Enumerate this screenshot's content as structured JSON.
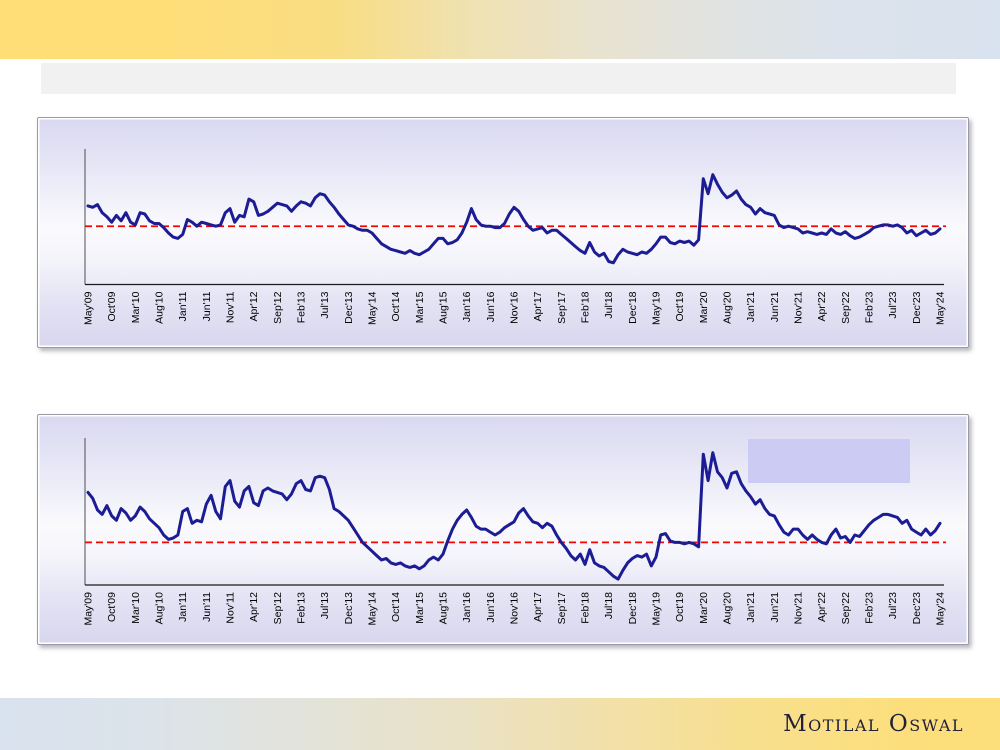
{
  "header": {
    "title": ""
  },
  "brand": {
    "logo_text": "Motilal Oswal",
    "logo_color": "#20203a"
  },
  "colors": {
    "banner_yellow": "#ffde78",
    "banner_blue": "#d9e2ef",
    "title_bar_gray": "#f1f1f1",
    "panel_lavender": "#d9d8f1",
    "line_navy": "#1c1c94",
    "mean_red": "#ff0000",
    "highlight_box_lavender": "#cbcbf3"
  },
  "chart_data": [
    {
      "type": "line",
      "title": "",
      "xlabel": "",
      "ylabel": "",
      "y_axis_labels_visible": false,
      "value_scale": "percent_of_plot_height_above_baseline (y axis unlabeled in source)",
      "points_per_tick": 5,
      "x_tick_labels": [
        "May'09",
        "Oct'09",
        "Mar'10",
        "Aug'10",
        "Jan'11",
        "Jun'11",
        "Nov'11",
        "Apr'12",
        "Sep'12",
        "Feb'13",
        "Jul'13",
        "Dec'13",
        "May'14",
        "Oct'14",
        "Mar'15",
        "Aug'15",
        "Jan'16",
        "Jun'16",
        "Nov'16",
        "Apr'17",
        "Sep'17",
        "Feb'18",
        "Jul'18",
        "Dec'18",
        "May'19",
        "Oct'19",
        "Mar'20",
        "Aug'20",
        "Jan'21",
        "Jun'21",
        "Nov'21",
        "Apr'22",
        "Sep'22",
        "Feb'23",
        "Jul'23",
        "Dec'23",
        "May'24"
      ],
      "mean_line": {
        "style": "dashed",
        "color": "#ff0000",
        "value": 43
      },
      "series": [
        {
          "name": "monthly-series-top",
          "color": "#1c1c94",
          "values": [
            58,
            57,
            59,
            53,
            50,
            46,
            51,
            47,
            53,
            46,
            44,
            53,
            52,
            47,
            45,
            45,
            42,
            38,
            35,
            34,
            37,
            48,
            46,
            43,
            46,
            45,
            44,
            43,
            44,
            53,
            56,
            46,
            51,
            50,
            63,
            61,
            51,
            52,
            54,
            57,
            60,
            59,
            58,
            54,
            58,
            61,
            60,
            58,
            64,
            67,
            66,
            61,
            57,
            52,
            48,
            44,
            43,
            41,
            40,
            40,
            38,
            34,
            30,
            28,
            26,
            25,
            24,
            23,
            25,
            23,
            22,
            24,
            26,
            30,
            34,
            34,
            30,
            31,
            33,
            38,
            46,
            56,
            48,
            44,
            43,
            43,
            42,
            42,
            45,
            52,
            57,
            54,
            48,
            43,
            40,
            41,
            42,
            38,
            40,
            40,
            37,
            34,
            31,
            28,
            25,
            23,
            31,
            24,
            21,
            23,
            17,
            16,
            22,
            26,
            24,
            23,
            22,
            24,
            23,
            26,
            30,
            35,
            35,
            31,
            30,
            32,
            31,
            32,
            29,
            33,
            78,
            67,
            81,
            74,
            68,
            64,
            66,
            69,
            63,
            59,
            57,
            52,
            56,
            53,
            52,
            51,
            44,
            42,
            43,
            42,
            41,
            38,
            39,
            38,
            37,
            38,
            37,
            41,
            38,
            37,
            39,
            36,
            34,
            35,
            37,
            39,
            42,
            43,
            44,
            44,
            43,
            44,
            42,
            38,
            40,
            36,
            38,
            40,
            37,
            38,
            41
          ]
        }
      ],
      "legend": null
    },
    {
      "type": "line",
      "title": "",
      "xlabel": "",
      "ylabel": "",
      "y_axis_labels_visible": false,
      "value_scale": "percent_of_plot_height_above_baseline (y axis unlabeled in source)",
      "points_per_tick": 5,
      "x_tick_labels": [
        "May'09",
        "Oct'09",
        "Mar'10",
        "Aug'10",
        "Jan'11",
        "Jun'11",
        "Nov'11",
        "Apr'12",
        "Sep'12",
        "Feb'13",
        "Jul'13",
        "Dec'13",
        "May'14",
        "Oct'14",
        "Mar'15",
        "Aug'15",
        "Jan'16",
        "Jun'16",
        "Nov'16",
        "Apr'17",
        "Sep'17",
        "Feb'18",
        "Jul'18",
        "Dec'18",
        "May'19",
        "Oct'19",
        "Mar'20",
        "Aug'20",
        "Jan'21",
        "Jun'21",
        "Nov'21",
        "Apr'22",
        "Sep'22",
        "Feb'23",
        "Jul'23",
        "Dec'23",
        "May'24"
      ],
      "mean_line": {
        "style": "dashed",
        "color": "#ff0000",
        "value": 29
      },
      "series": [
        {
          "name": "monthly-series-bottom",
          "color": "#1c1c94",
          "values": [
            63,
            59,
            51,
            48,
            54,
            47,
            44,
            52,
            49,
            44,
            47,
            53,
            50,
            45,
            42,
            39,
            34,
            31,
            32,
            34,
            50,
            52,
            42,
            44,
            43,
            55,
            61,
            50,
            45,
            67,
            71,
            57,
            53,
            64,
            67,
            56,
            54,
            64,
            66,
            64,
            63,
            62,
            58,
            62,
            69,
            71,
            65,
            64,
            73,
            74,
            73,
            65,
            52,
            50,
            47,
            44,
            39,
            34,
            29,
            26,
            23,
            20,
            17,
            18,
            15,
            14,
            15,
            13,
            12,
            13,
            11,
            13,
            17,
            19,
            17,
            21,
            30,
            38,
            44,
            48,
            51,
            46,
            40,
            38,
            38,
            36,
            34,
            36,
            39,
            41,
            43,
            49,
            52,
            47,
            43,
            42,
            39,
            42,
            40,
            34,
            29,
            25,
            20,
            17,
            21,
            14,
            24,
            15,
            13,
            12,
            9,
            6,
            4,
            10,
            15,
            18,
            20,
            19,
            21,
            13,
            19,
            34,
            35,
            30,
            29,
            29,
            28,
            29,
            28,
            26,
            89,
            71,
            90,
            77,
            73,
            66,
            76,
            77,
            69,
            64,
            60,
            55,
            58,
            52,
            48,
            47,
            41,
            36,
            34,
            38,
            38,
            34,
            31,
            34,
            31,
            29,
            28,
            34,
            38,
            32,
            33,
            29,
            34,
            33,
            37,
            41,
            44,
            46,
            48,
            48,
            47,
            46,
            42,
            44,
            38,
            36,
            34,
            38,
            34,
            37,
            42
          ]
        }
      ],
      "legend": {
        "highlight_box_text": "",
        "highlight_box_color": "#cbcbf3"
      }
    }
  ]
}
